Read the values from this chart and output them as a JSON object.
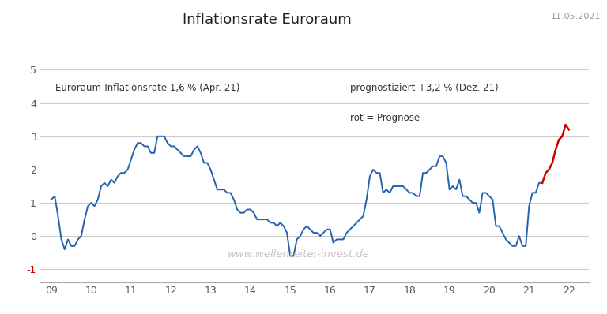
{
  "title": "Inflationsrate Euroraum",
  "date_label": "11.05.2021",
  "annotation_left": "Euroraum-Inflationsrate 1,6 % (Apr. 21)",
  "annotation_right": "prognostiziert +3,2 % (Dez. 21)",
  "annotation_legend": "rot = Prognose",
  "watermark": "www.wellenreiter-invest.de",
  "yticks": [
    -1,
    0,
    1,
    2,
    3,
    4,
    5
  ],
  "ylim": [
    -1.4,
    5.4
  ],
  "xlim_start": 2008.7,
  "xlim_end": 2022.5,
  "blue_color": "#2563b0",
  "red_color": "#cc0000",
  "grid_color": "#cccccc",
  "background_color": "#ffffff",
  "blue_x": [
    2009.0,
    2009.083,
    2009.167,
    2009.25,
    2009.333,
    2009.417,
    2009.5,
    2009.583,
    2009.667,
    2009.75,
    2009.833,
    2009.917,
    2010.0,
    2010.083,
    2010.167,
    2010.25,
    2010.333,
    2010.417,
    2010.5,
    2010.583,
    2010.667,
    2010.75,
    2010.833,
    2010.917,
    2011.0,
    2011.083,
    2011.167,
    2011.25,
    2011.333,
    2011.417,
    2011.5,
    2011.583,
    2011.667,
    2011.75,
    2011.833,
    2011.917,
    2012.0,
    2012.083,
    2012.167,
    2012.25,
    2012.333,
    2012.417,
    2012.5,
    2012.583,
    2012.667,
    2012.75,
    2012.833,
    2012.917,
    2013.0,
    2013.083,
    2013.167,
    2013.25,
    2013.333,
    2013.417,
    2013.5,
    2013.583,
    2013.667,
    2013.75,
    2013.833,
    2013.917,
    2014.0,
    2014.083,
    2014.167,
    2014.25,
    2014.333,
    2014.417,
    2014.5,
    2014.583,
    2014.667,
    2014.75,
    2014.833,
    2014.917,
    2015.0,
    2015.083,
    2015.167,
    2015.25,
    2015.333,
    2015.417,
    2015.5,
    2015.583,
    2015.667,
    2015.75,
    2015.833,
    2015.917,
    2016.0,
    2016.083,
    2016.167,
    2016.25,
    2016.333,
    2016.417,
    2016.5,
    2016.583,
    2016.667,
    2016.75,
    2016.833,
    2016.917,
    2017.0,
    2017.083,
    2017.167,
    2017.25,
    2017.333,
    2017.417,
    2017.5,
    2017.583,
    2017.667,
    2017.75,
    2017.833,
    2017.917,
    2018.0,
    2018.083,
    2018.167,
    2018.25,
    2018.333,
    2018.417,
    2018.5,
    2018.583,
    2018.667,
    2018.75,
    2018.833,
    2018.917,
    2019.0,
    2019.083,
    2019.167,
    2019.25,
    2019.333,
    2019.417,
    2019.5,
    2019.583,
    2019.667,
    2019.75,
    2019.833,
    2019.917,
    2020.0,
    2020.083,
    2020.167,
    2020.25,
    2020.333,
    2020.417,
    2020.5,
    2020.583,
    2020.667,
    2020.75,
    2020.833,
    2020.917,
    2021.0,
    2021.083,
    2021.167,
    2021.25,
    2021.333
  ],
  "blue_y": [
    1.1,
    1.2,
    0.6,
    -0.1,
    -0.4,
    -0.1,
    -0.3,
    -0.3,
    -0.1,
    0.0,
    0.5,
    0.9,
    1.0,
    0.9,
    1.1,
    1.5,
    1.6,
    1.5,
    1.7,
    1.6,
    1.8,
    1.9,
    1.9,
    2.0,
    2.3,
    2.6,
    2.8,
    2.8,
    2.7,
    2.7,
    2.5,
    2.5,
    3.0,
    3.0,
    3.0,
    2.8,
    2.7,
    2.7,
    2.6,
    2.5,
    2.4,
    2.4,
    2.4,
    2.6,
    2.7,
    2.5,
    2.2,
    2.2,
    2.0,
    1.7,
    1.4,
    1.4,
    1.4,
    1.3,
    1.3,
    1.1,
    0.8,
    0.7,
    0.7,
    0.8,
    0.8,
    0.7,
    0.5,
    0.5,
    0.5,
    0.5,
    0.4,
    0.4,
    0.3,
    0.4,
    0.3,
    0.1,
    -0.6,
    -0.6,
    -0.1,
    0.0,
    0.2,
    0.3,
    0.2,
    0.1,
    0.1,
    0.0,
    0.1,
    0.2,
    0.2,
    -0.2,
    -0.1,
    -0.1,
    -0.1,
    0.1,
    0.2,
    0.3,
    0.4,
    0.5,
    0.6,
    1.1,
    1.8,
    2.0,
    1.9,
    1.9,
    1.3,
    1.4,
    1.3,
    1.5,
    1.5,
    1.5,
    1.5,
    1.4,
    1.3,
    1.3,
    1.2,
    1.2,
    1.9,
    1.9,
    2.0,
    2.1,
    2.1,
    2.4,
    2.4,
    2.2,
    1.4,
    1.5,
    1.4,
    1.7,
    1.2,
    1.2,
    1.1,
    1.0,
    1.0,
    0.7,
    1.3,
    1.3,
    1.2,
    1.1,
    0.3,
    0.3,
    0.1,
    -0.1,
    -0.2,
    -0.3,
    -0.3,
    0.0,
    -0.3,
    -0.3,
    0.9,
    1.3,
    1.3,
    1.6,
    1.6
  ],
  "red_x": [
    2021.333,
    2021.417,
    2021.5,
    2021.583,
    2021.667,
    2021.75,
    2021.833,
    2021.917,
    2022.0
  ],
  "red_y": [
    1.6,
    1.9,
    2.0,
    2.2,
    2.6,
    2.9,
    3.0,
    3.35,
    3.2
  ]
}
